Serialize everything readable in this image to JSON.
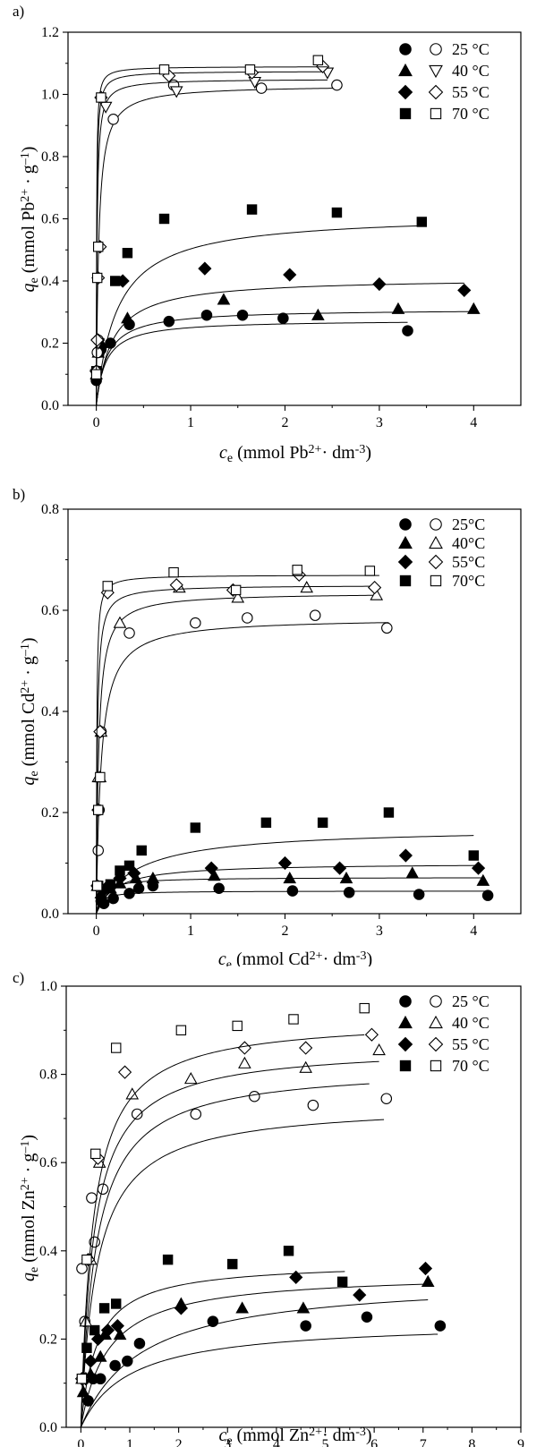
{
  "chart_data": [
    {
      "panel_label": "a)",
      "type": "scatter",
      "xlabel": {
        "main": "c",
        "sub": "e",
        "rest": " (mmol Pb",
        "sup": "2+",
        "rest2": "· dm",
        "sup2": "-3",
        "rest3": ")"
      },
      "ylabel": {
        "main": "q",
        "sub": "e",
        "rest": " (mmol Pb",
        "sup": "2+",
        "rest2": " · g",
        "sup2": "–1",
        "rest3": ")"
      },
      "xlim": [
        -0.3,
        4.5
      ],
      "ylim": [
        0.0,
        1.2
      ],
      "xticks": [
        "0",
        "1",
        "2",
        "3",
        "4"
      ],
      "xtick_values": [
        0,
        1,
        2,
        3,
        4
      ],
      "yticks": [
        "0.0",
        "0.2",
        "0.4",
        "0.6",
        "0.8",
        "1.0",
        "1.2"
      ],
      "ytick_values": [
        0.0,
        0.2,
        0.4,
        0.6,
        0.8,
        1.0,
        1.2
      ],
      "legend": [
        {
          "label": "25 °C",
          "filled": "circle",
          "open": "circle"
        },
        {
          "label": "40 °C",
          "filled": "triangle-up",
          "open": "triangle-down"
        },
        {
          "label": "55 °C",
          "filled": "diamond",
          "open": "diamond"
        },
        {
          "label": "70 °C",
          "filled": "square",
          "open": "square"
        }
      ],
      "series": [
        {
          "marker": "circle",
          "filled": true,
          "x": [
            0.0,
            0.01,
            0.02,
            0.05,
            0.15,
            0.35,
            0.77,
            1.17,
            1.55,
            1.98,
            3.3
          ],
          "y": [
            0.08,
            0.11,
            0.17,
            0.18,
            0.2,
            0.26,
            0.27,
            0.29,
            0.29,
            0.28,
            0.24
          ],
          "fit": {
            "qm": 0.275,
            "k": 10,
            "xmax": 3.3
          }
        },
        {
          "marker": "triangle-up",
          "filled": true,
          "x": [
            0.0,
            0.02,
            0.05,
            0.33,
            1.35,
            2.35,
            3.2,
            4.0
          ],
          "y": [
            0.1,
            0.17,
            0.2,
            0.28,
            0.34,
            0.29,
            0.31,
            0.31
          ],
          "fit": {
            "qm": 0.31,
            "k": 9,
            "xmax": 4.0
          }
        },
        {
          "marker": "diamond",
          "filled": true,
          "x": [
            0.0,
            0.02,
            0.28,
            1.15,
            2.05,
            3.0,
            3.9
          ],
          "y": [
            0.11,
            0.21,
            0.4,
            0.44,
            0.42,
            0.39,
            0.37
          ],
          "fit": {
            "qm": 0.41,
            "k": 6,
            "xmax": 3.9
          }
        },
        {
          "marker": "square",
          "filled": true,
          "x": [
            0.0,
            0.2,
            0.33,
            0.72,
            1.65,
            2.55,
            3.45
          ],
          "y": [
            0.11,
            0.4,
            0.49,
            0.6,
            0.63,
            0.62,
            0.59
          ],
          "fit": {
            "qm": 0.615,
            "k": 4.5,
            "xmax": 3.45
          }
        },
        {
          "marker": "circle",
          "filled": false,
          "x": [
            0.0,
            0.01,
            0.02,
            0.18,
            0.82,
            1.75,
            2.55
          ],
          "y": [
            0.11,
            0.17,
            0.21,
            0.92,
            1.03,
            1.02,
            1.03
          ],
          "fit": {
            "qm": 1.03,
            "k": 40,
            "xmax": 2.55
          }
        },
        {
          "marker": "triangle-down",
          "filled": false,
          "x": [
            0.0,
            0.02,
            0.1,
            0.85,
            1.68,
            2.45
          ],
          "y": [
            0.1,
            0.2,
            0.96,
            1.01,
            1.04,
            1.07
          ],
          "fit": {
            "qm": 1.05,
            "k": 120,
            "xmax": 2.45
          }
        },
        {
          "marker": "diamond",
          "filled": false,
          "x": [
            0.0,
            0.01,
            0.02,
            0.04,
            0.05,
            0.77,
            1.65,
            2.4
          ],
          "y": [
            0.11,
            0.21,
            0.41,
            0.51,
            0.99,
            1.06,
            1.07,
            1.09
          ],
          "fit": {
            "qm": 1.075,
            "k": 200,
            "xmax": 2.4
          }
        },
        {
          "marker": "square",
          "filled": false,
          "x": [
            0.0,
            0.01,
            0.02,
            0.05,
            0.72,
            1.63,
            2.35
          ],
          "y": [
            0.1,
            0.41,
            0.51,
            0.99,
            1.08,
            1.08,
            1.11
          ],
          "fit": {
            "qm": 1.09,
            "k": 300,
            "xmax": 2.45
          }
        }
      ]
    },
    {
      "panel_label": "b)",
      "type": "scatter",
      "xlabel": {
        "main": "c",
        "sub": "e",
        "rest": " (mmol Cd",
        "sup": "2+",
        "rest2": "· dm",
        "sup2": "-3",
        "rest3": ")"
      },
      "ylabel": {
        "main": "q",
        "sub": "e",
        "rest": " (mmol Cd",
        "sup": "2+",
        "rest2": " · g",
        "sup2": "–1",
        "rest3": ")"
      },
      "xlim": [
        -0.3,
        4.5
      ],
      "ylim": [
        0.0,
        0.8
      ],
      "xticks": [
        "0",
        "1",
        "2",
        "3",
        "4"
      ],
      "xtick_values": [
        0,
        1,
        2,
        3,
        4
      ],
      "yticks": [
        "0.0",
        "0.2",
        "0.4",
        "0.6",
        "0.8"
      ],
      "ytick_values": [
        0.0,
        0.2,
        0.4,
        0.6,
        0.8
      ],
      "legend": [
        {
          "label": "25°C",
          "filled": "circle",
          "open": "circle"
        },
        {
          "label": "40°C",
          "filled": "triangle-up",
          "open": "triangle-up"
        },
        {
          "label": "55°C",
          "filled": "diamond",
          "open": "diamond"
        },
        {
          "label": "70°C",
          "filled": "square",
          "open": "square"
        }
      ],
      "series": [
        {
          "marker": "circle",
          "filled": true,
          "x": [
            0.05,
            0.08,
            0.18,
            0.35,
            0.45,
            0.6,
            1.3,
            2.08,
            2.68,
            3.42,
            4.15
          ],
          "y": [
            0.025,
            0.02,
            0.03,
            0.04,
            0.05,
            0.055,
            0.05,
            0.045,
            0.042,
            0.038,
            0.036
          ],
          "fit": {
            "qm": 0.045,
            "k": 20,
            "xmax": 4.15
          }
        },
        {
          "marker": "triangle-up",
          "filled": true,
          "x": [
            0.05,
            0.15,
            0.25,
            0.42,
            0.6,
            1.25,
            2.05,
            2.65,
            3.35,
            4.1
          ],
          "y": [
            0.04,
            0.05,
            0.06,
            0.07,
            0.07,
            0.075,
            0.07,
            0.07,
            0.08,
            0.065
          ],
          "fit": {
            "qm": 0.072,
            "k": 15,
            "xmax": 4.1
          }
        },
        {
          "marker": "diamond",
          "filled": true,
          "x": [
            0.1,
            0.25,
            0.4,
            1.22,
            2.0,
            2.58,
            3.28,
            4.05
          ],
          "y": [
            0.05,
            0.07,
            0.08,
            0.09,
            0.1,
            0.09,
            0.115,
            0.09
          ],
          "fit": {
            "qm": 0.1,
            "k": 5,
            "xmax": 4.05
          }
        },
        {
          "marker": "square",
          "filled": true,
          "x": [
            0.02,
            0.15,
            0.25,
            0.35,
            0.48,
            1.05,
            1.8,
            2.4,
            3.1,
            4.0
          ],
          "y": [
            0.055,
            0.058,
            0.085,
            0.095,
            0.125,
            0.17,
            0.18,
            0.18,
            0.2,
            0.115
          ],
          "fit": {
            "qm": 0.17,
            "k": 2.5,
            "xmax": 4.0
          }
        },
        {
          "marker": "circle",
          "filled": false,
          "x": [
            0.01,
            0.02,
            0.03,
            0.05,
            0.35,
            1.05,
            1.6,
            2.32,
            3.08
          ],
          "y": [
            0.055,
            0.125,
            0.205,
            0.36,
            0.555,
            0.575,
            0.585,
            0.59,
            0.565
          ],
          "fit": {
            "qm": 0.585,
            "k": 20,
            "xmax": 3.1
          }
        },
        {
          "marker": "triangle-up",
          "filled": false,
          "x": [
            0.01,
            0.02,
            0.04,
            0.05,
            0.25,
            0.88,
            1.5,
            2.23,
            2.97
          ],
          "y": [
            0.055,
            0.27,
            0.27,
            0.36,
            0.575,
            0.645,
            0.625,
            0.645,
            0.63
          ],
          "fit": {
            "qm": 0.635,
            "k": 40,
            "xmax": 3.0
          }
        },
        {
          "marker": "diamond",
          "filled": false,
          "x": [
            0.01,
            0.02,
            0.04,
            0.12,
            0.85,
            1.45,
            2.15,
            2.95
          ],
          "y": [
            0.055,
            0.205,
            0.36,
            0.635,
            0.65,
            0.64,
            0.67,
            0.645
          ],
          "fit": {
            "qm": 0.65,
            "k": 90,
            "xmax": 3.0
          }
        },
        {
          "marker": "square",
          "filled": false,
          "x": [
            0.01,
            0.02,
            0.04,
            0.12,
            0.82,
            1.48,
            2.13,
            2.9
          ],
          "y": [
            0.055,
            0.205,
            0.27,
            0.648,
            0.675,
            0.64,
            0.68,
            0.678
          ],
          "fit": {
            "qm": 0.67,
            "k": 200,
            "xmax": 3.0
          }
        }
      ]
    },
    {
      "panel_label": "c)",
      "type": "scatter",
      "xlabel": {
        "main": "c",
        "sub": "e",
        "rest": " (mmol Zn",
        "sup": "2+",
        "rest2": "· dm",
        "sup2": "-3",
        "rest3": ")"
      },
      "ylabel": {
        "main": "q",
        "sub": "e",
        "rest": " (mmol Zn",
        "sup": "2+",
        "rest2": " · g",
        "sup2": "–1",
        "rest3": ")"
      },
      "xlim": [
        -0.3,
        9.0
      ],
      "ylim": [
        0.0,
        1.0
      ],
      "xticks": [
        "0",
        "1",
        "2",
        "3",
        "4",
        "5",
        "6",
        "7",
        "8",
        "9"
      ],
      "xtick_values": [
        0,
        1,
        2,
        3,
        4,
        5,
        6,
        7,
        8,
        9
      ],
      "yticks": [
        "0.0",
        "0.2",
        "0.4",
        "0.6",
        "0.8",
        "1.0"
      ],
      "ytick_values": [
        0.0,
        0.2,
        0.4,
        0.6,
        0.8,
        1.0
      ],
      "legend": [
        {
          "label": "25 °C",
          "filled": "circle",
          "open": "circle"
        },
        {
          "label": "40 °C",
          "filled": "triangle-up",
          "open": "triangle-up"
        },
        {
          "label": "55 °C",
          "filled": "diamond",
          "open": "diamond"
        },
        {
          "label": "70 °C",
          "filled": "square",
          "open": "square"
        }
      ],
      "series": [
        {
          "marker": "circle",
          "filled": true,
          "x": [
            0.15,
            0.25,
            0.4,
            0.7,
            0.95,
            1.2,
            2.7,
            4.6,
            5.85,
            7.35
          ],
          "y": [
            0.06,
            0.11,
            0.11,
            0.14,
            0.15,
            0.19,
            0.24,
            0.23,
            0.25,
            0.23
          ],
          "fit": {
            "qm": 0.24,
            "k": 1.0,
            "xmax": 7.3
          }
        },
        {
          "marker": "triangle-up",
          "filled": true,
          "x": [
            0.05,
            0.2,
            0.4,
            0.5,
            0.8,
            2.05,
            3.3,
            4.55,
            7.1
          ],
          "y": [
            0.08,
            0.12,
            0.16,
            0.21,
            0.21,
            0.28,
            0.27,
            0.27,
            0.33
          ],
          "fit": {
            "qm": 0.34,
            "k": 0.8,
            "xmax": 7.1
          }
        },
        {
          "marker": "diamond",
          "filled": true,
          "x": [
            0.1,
            0.2,
            0.35,
            0.55,
            0.75,
            2.05,
            4.4,
            5.7,
            7.05
          ],
          "y": [
            0.11,
            0.15,
            0.2,
            0.22,
            0.23,
            0.27,
            0.34,
            0.3,
            0.36
          ],
          "fit": {
            "qm": 0.35,
            "k": 1.8,
            "xmax": 7.0
          }
        },
        {
          "marker": "square",
          "filled": true,
          "x": [
            0.02,
            0.12,
            0.28,
            0.48,
            0.72,
            1.78,
            3.1,
            4.25,
            5.35
          ],
          "y": [
            0.11,
            0.18,
            0.22,
            0.27,
            0.28,
            0.38,
            0.37,
            0.4,
            0.33
          ],
          "fit": {
            "qm": 0.375,
            "k": 3.0,
            "xmax": 5.4
          }
        },
        {
          "marker": "circle",
          "filled": false,
          "x": [
            0.02,
            0.08,
            0.22,
            0.28,
            0.45,
            1.15,
            2.35,
            3.55,
            4.75,
            6.25
          ],
          "y": [
            0.36,
            0.24,
            0.52,
            0.42,
            0.54,
            0.71,
            0.71,
            0.75,
            0.73,
            0.745
          ],
          "fit": {
            "qm": 0.735,
            "k": 3.0,
            "xmax": 6.2
          }
        },
        {
          "marker": "triangle-up",
          "filled": false,
          "x": [
            0.02,
            0.1,
            0.2,
            0.38,
            1.05,
            2.25,
            3.35,
            4.6,
            6.1
          ],
          "y": [
            0.11,
            0.24,
            0.38,
            0.6,
            0.755,
            0.79,
            0.825,
            0.815,
            0.855
          ],
          "fit": {
            "qm": 0.82,
            "k": 3.2,
            "xmax": 5.9
          }
        },
        {
          "marker": "diamond",
          "filled": false,
          "x": [
            0.02,
            0.15,
            0.35,
            0.9,
            3.35,
            4.6,
            5.95
          ],
          "y": [
            0.11,
            0.38,
            0.61,
            0.805,
            0.86,
            0.86,
            0.89
          ],
          "fit": {
            "qm": 0.865,
            "k": 3.8,
            "xmax": 6.1
          }
        },
        {
          "marker": "square",
          "filled": false,
          "x": [
            0.02,
            0.12,
            0.3,
            0.72,
            2.05,
            3.2,
            4.35,
            5.8
          ],
          "y": [
            0.11,
            0.38,
            0.62,
            0.86,
            0.9,
            0.91,
            0.925,
            0.95
          ],
          "fit": {
            "qm": 0.928,
            "k": 4.0,
            "xmax": 5.8
          }
        }
      ]
    }
  ]
}
